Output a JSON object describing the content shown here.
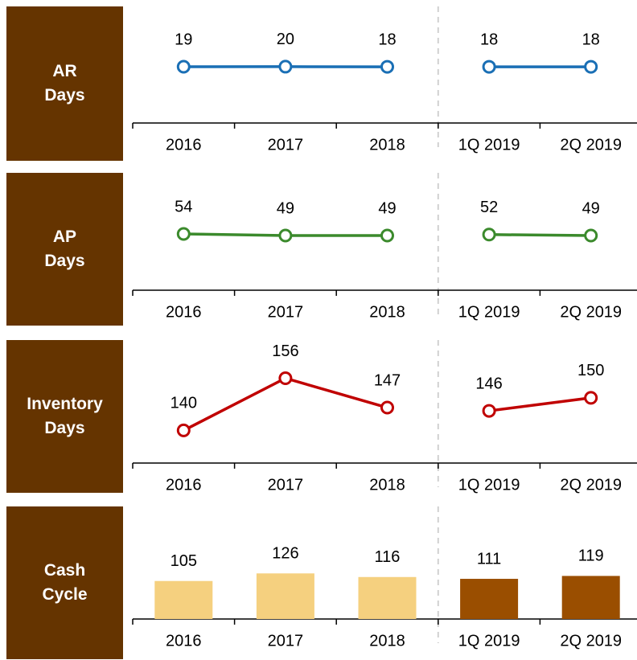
{
  "chart_data": [
    {
      "type": "line",
      "title": "AR Days",
      "categories": [
        "2016",
        "2017",
        "2018",
        "1Q 2019",
        "2Q 2019"
      ],
      "values": [
        19,
        20,
        18,
        18,
        18
      ],
      "color": "#1a6fb5",
      "ylim": [
        -1000,
        1038
      ],
      "divider_after": 2
    },
    {
      "type": "line",
      "title": "AP Days",
      "categories": [
        "2016",
        "2017",
        "2018",
        "1Q 2019",
        "2Q 2019"
      ],
      "values": [
        54,
        49,
        49,
        52,
        49
      ],
      "color": "#3b8a2c",
      "ylim": [
        -121,
        229
      ],
      "divider_after": 2
    },
    {
      "type": "line",
      "title": "Inventory Days",
      "categories": [
        "2016",
        "2017",
        "2018",
        "1Q 2019",
        "2Q 2019"
      ],
      "values": [
        140,
        156,
        147,
        146,
        150
      ],
      "color": "#c00000",
      "ylim": [
        130,
        164.5
      ],
      "divider_after": 2
    },
    {
      "type": "bar",
      "title": "Cash Cycle",
      "categories": [
        "2016",
        "2017",
        "2018",
        "1Q 2019",
        "2Q 2019"
      ],
      "values": [
        105,
        126,
        116,
        111,
        119
      ],
      "colors": [
        "#f5d07f",
        "#f5d07f",
        "#f5d07f",
        "#9a4e00",
        "#9a4e00"
      ],
      "ylim": [
        0,
        311
      ],
      "divider_after": 2
    }
  ]
}
